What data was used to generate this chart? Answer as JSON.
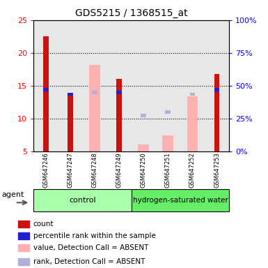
{
  "title": "GDS5215 / 1368515_at",
  "samples": [
    "GSM647246",
    "GSM647247",
    "GSM647248",
    "GSM647249",
    "GSM647250",
    "GSM647251",
    "GSM647252",
    "GSM647253"
  ],
  "red_count": [
    22.5,
    13.8,
    null,
    16.1,
    null,
    null,
    null,
    16.8
  ],
  "blue_rank": [
    14.4,
    13.7,
    null,
    14.0,
    null,
    null,
    null,
    14.4
  ],
  "pink_value": [
    null,
    null,
    18.2,
    null,
    6.1,
    7.4,
    13.4,
    null
  ],
  "lavender_rank": [
    null,
    null,
    14.0,
    null,
    10.5,
    11.0,
    13.7,
    null
  ],
  "ylim": [
    5,
    25
  ],
  "y2lim": [
    0,
    100
  ],
  "yticks": [
    5,
    10,
    15,
    20,
    25
  ],
  "y2ticks": [
    0,
    25,
    50,
    75,
    100
  ],
  "colors": {
    "red": "#cc1111",
    "blue": "#2222cc",
    "pink": "#ffb0b0",
    "lavender": "#b0b0dd",
    "control_bg": "#aaffaa",
    "hydrogen_bg": "#66ee66",
    "col_bg": "#d0d0d0"
  },
  "legend": [
    {
      "color": "#cc1111",
      "label": "count"
    },
    {
      "color": "#2222cc",
      "label": "percentile rank within the sample"
    },
    {
      "color": "#ffb0b0",
      "label": "value, Detection Call = ABSENT"
    },
    {
      "color": "#b0b0dd",
      "label": "rank, Detection Call = ABSENT"
    }
  ]
}
